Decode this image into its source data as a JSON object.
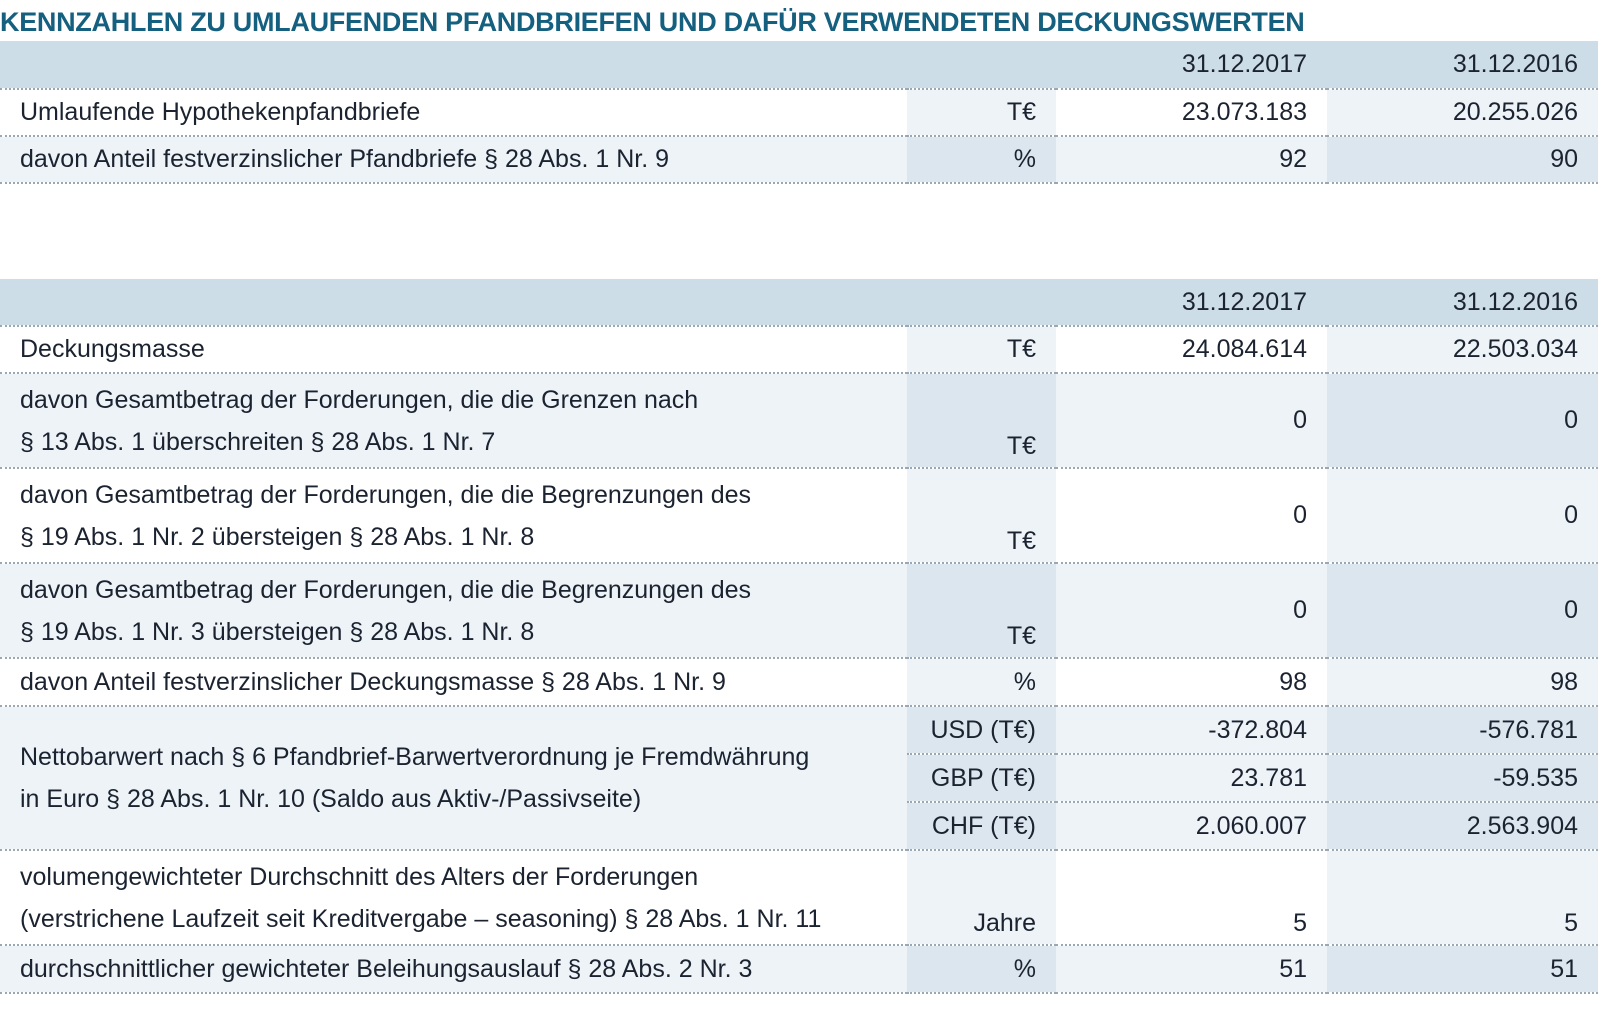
{
  "title": "KENNZAHLEN ZU UMLAUFENDEN PFANDBRIEFEN UND DAFÜR VERWENDETEN DECKUNGSWERTEN",
  "table1": {
    "header": {
      "col1": "31.12.2017",
      "col2": "31.12.2016"
    },
    "rows": [
      {
        "label": "Umlaufende Hypothekenpfandbriefe",
        "unit": "T€",
        "v2017": "23.073.183",
        "v2016": "20.255.026"
      },
      {
        "label": "davon Anteil festverzinslicher Pfandbriefe § 28 Abs. 1 Nr. 9",
        "unit": "%",
        "v2017": "92",
        "v2016": "90"
      }
    ]
  },
  "table2": {
    "header": {
      "col1": "31.12.2017",
      "col2": "31.12.2016"
    },
    "rows": [
      {
        "label": "Deckungsmasse",
        "unit": "T€",
        "v2017": "24.084.614",
        "v2016": "22.503.034"
      },
      {
        "label_line1": "davon Gesamtbetrag der Forderungen, die die Grenzen nach",
        "label_line2": "§ 13 Abs. 1 überschreiten § 28 Abs. 1 Nr. 7",
        "unit": "T€",
        "v2017": "0",
        "v2016": "0"
      },
      {
        "label_line1": "davon Gesamtbetrag der Forderungen, die die Begrenzungen des",
        "label_line2": "§ 19 Abs. 1 Nr. 2 übersteigen § 28 Abs. 1 Nr. 8",
        "unit": "T€",
        "v2017": "0",
        "v2016": "0"
      },
      {
        "label_line1": "davon Gesamtbetrag der Forderungen, die die Begrenzungen des",
        "label_line2": "§ 19 Abs. 1 Nr. 3 übersteigen § 28 Abs. 1 Nr. 8",
        "unit": "T€",
        "v2017": "0",
        "v2016": "0"
      },
      {
        "label": "davon Anteil festverzinslicher Deckungsmasse § 28 Abs. 1 Nr. 9",
        "unit": "%",
        "v2017": "98",
        "v2016": "98"
      }
    ],
    "nettobarwert": {
      "label_line1": "Nettobarwert nach § 6 Pfandbrief-Barwertverordnung je Fremdwährung",
      "label_line2": "in Euro § 28 Abs. 1 Nr. 10 (Saldo aus Aktiv-/Passivseite)",
      "sub": [
        {
          "unit": "USD (T€)",
          "v2017": "-372.804",
          "v2016": "-576.781"
        },
        {
          "unit": "GBP (T€)",
          "v2017": "23.781",
          "v2016": "-59.535"
        },
        {
          "unit": "CHF (T€)",
          "v2017": "2.060.007",
          "v2016": "2.563.904"
        }
      ]
    },
    "tail_rows": [
      {
        "label_line1": "volumengewichteter Durchschnitt des Alters der Forderungen",
        "label_line2": "(verstrichene Laufzeit seit Kreditvergabe – seasoning) § 28 Abs. 1 Nr. 11",
        "unit": "Jahre",
        "v2017": "5",
        "v2016": "5"
      },
      {
        "label": "durchschnittlicher gewichteter Beleihungsauslauf § 28 Abs. 2 Nr. 3",
        "unit": "%",
        "v2017": "51",
        "v2016": "51"
      }
    ]
  }
}
